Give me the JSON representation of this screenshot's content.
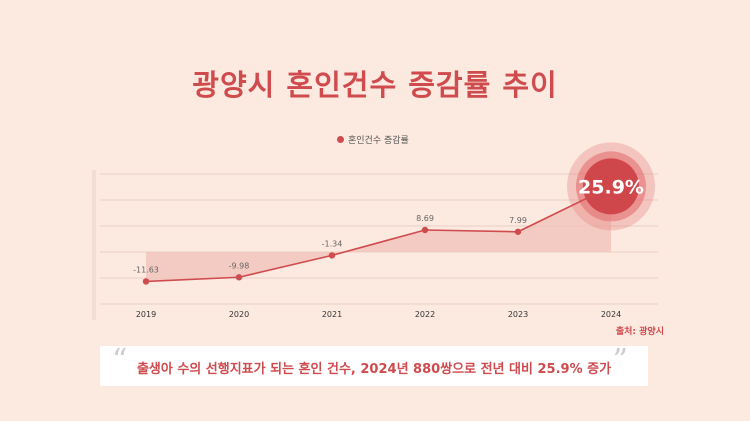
{
  "title": "광양시 혼인건수 증감률 추이",
  "legend_label": "혼인건수 증감률",
  "source": "출처: 광양시",
  "quote": "출생아 수의 선행지표가 되는 혼인 건수, 2024년 880쌍으로 전년 대비 25.9% 증가",
  "colors": {
    "accent": "#cf4b4e",
    "fill": "#f2c0b8",
    "background": "#fce9e0"
  },
  "chart_data": {
    "type": "line",
    "categories": [
      "2019",
      "2020",
      "2021",
      "2022",
      "2023",
      "2024"
    ],
    "series": [
      {
        "name": "혼인건수 증감률",
        "values": [
          -11.63,
          -9.98,
          -1.34,
          8.69,
          7.99,
          25.9
        ]
      }
    ],
    "value_labels": [
      "-11.63",
      "-9.98",
      "-1.34",
      "8.69",
      "7.99",
      "25.9%"
    ],
    "highlight_index": 5,
    "legend_position": "top-center",
    "grid": true
  }
}
